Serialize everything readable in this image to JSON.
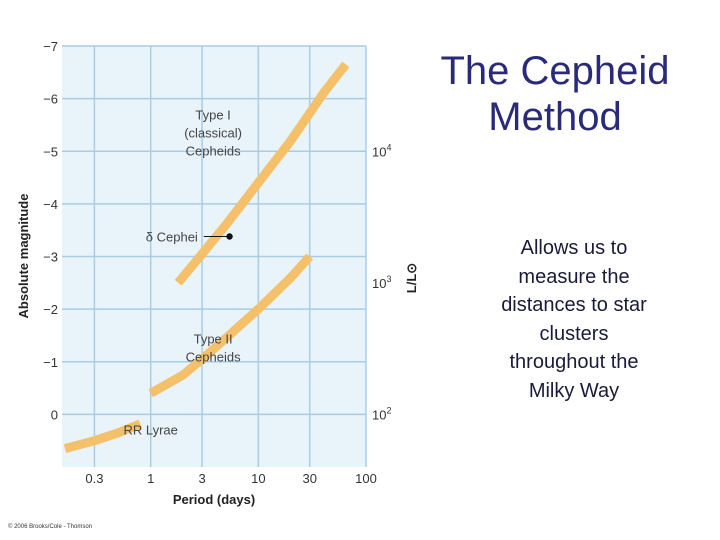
{
  "slide": {
    "title_line1": "The Cepheid",
    "title_line2": "Method",
    "body_lines": [
      "Allows us to",
      "measure the",
      "distances to star",
      "clusters",
      "throughout the",
      "Milky Way"
    ],
    "credit": "© 2006 Brooks/Cole - Thomson"
  },
  "colors": {
    "band": "#f5c06a",
    "grid": "#a9cce6",
    "panel": "#e9f3fa",
    "text": "#333333",
    "point": "#111111"
  },
  "chart_data": {
    "type": "line",
    "xlabel": "Period (days)",
    "ylabel": "Absolute magnitude",
    "y2label": "L/L⊙",
    "x_scale": "log",
    "xlim": [
      0.15,
      100
    ],
    "ylim": [
      1,
      -7
    ],
    "y_inverted": true,
    "grid": true,
    "x_ticks": [
      0.3,
      1,
      3,
      10,
      30,
      100
    ],
    "x_tick_labels": [
      "0.3",
      "1",
      "3",
      "10",
      "30",
      "100"
    ],
    "y_ticks": [
      -7,
      -6,
      -5,
      -4,
      -3,
      -2,
      -1,
      0
    ],
    "y_tick_labels": [
      "−7",
      "−6",
      "−5",
      "−4",
      "−3",
      "−2",
      "−1",
      "0"
    ],
    "y2_ticks": [
      {
        "magnitude": -5,
        "label": "10",
        "exp": "4"
      },
      {
        "magnitude": -2.5,
        "label": "10",
        "exp": "3"
      },
      {
        "magnitude": 0,
        "label": "10",
        "exp": "2"
      }
    ],
    "series": [
      {
        "label_lines": [
          "Type I",
          "(classical)",
          "Cepheids"
        ],
        "label_at": {
          "x": 3.8,
          "y": -5.6
        },
        "x": [
          1.8,
          3,
          5,
          10,
          20,
          40,
          65
        ],
        "y": [
          -2.5,
          -3.05,
          -3.6,
          -4.4,
          -5.2,
          -6.1,
          -6.65
        ]
      },
      {
        "label_lines": [
          "Type II",
          "Cepheids"
        ],
        "label_at": {
          "x": 3.8,
          "y": -1.35
        },
        "x": [
          1,
          2,
          3,
          5,
          10,
          20,
          30
        ],
        "y": [
          -0.4,
          -0.75,
          -1.05,
          -1.45,
          -2.0,
          -2.6,
          -3.0
        ]
      },
      {
        "label_lines": [
          "RR Lyrae"
        ],
        "label_at": {
          "x": 1.0,
          "y": 0.38
        },
        "x": [
          0.16,
          0.3,
          0.5,
          0.8
        ],
        "y": [
          0.65,
          0.5,
          0.35,
          0.18
        ]
      }
    ],
    "annotations": [
      {
        "text": "δ Cephei",
        "x": 5.4,
        "y": -3.38,
        "text_x": 0.9,
        "text_y": -3.38
      }
    ]
  }
}
